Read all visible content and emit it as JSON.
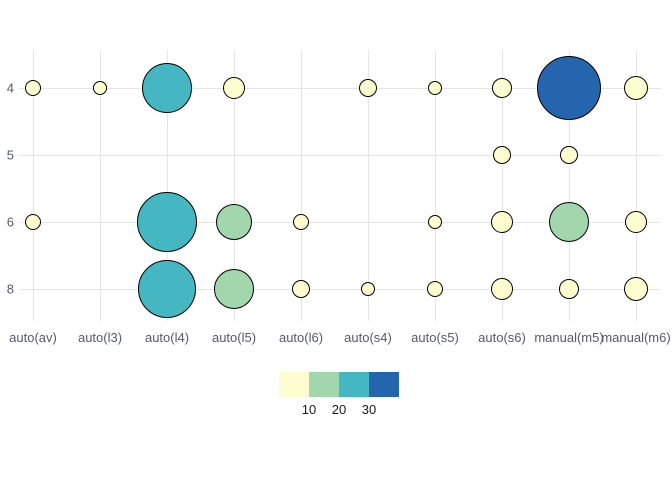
{
  "chart_data": {
    "type": "scatter",
    "subtype": "bubble-count",
    "title": "",
    "xlabel": "",
    "ylabel": "",
    "grid": true,
    "legend_position": "bottom",
    "x_categories": [
      "auto(av)",
      "auto(l3)",
      "auto(l4)",
      "auto(l5)",
      "auto(l6)",
      "auto(s4)",
      "auto(s5)",
      "auto(s6)",
      "manual(m5)",
      "manual(m6)"
    ],
    "y_categories": [
      "4",
      "5",
      "6",
      "8"
    ],
    "legend": {
      "tick_labels": [
        "10",
        "20",
        "30"
      ],
      "bin_colors": [
        "#fdfdcf",
        "#a2d7ad",
        "#44b7c3",
        "#2565ae"
      ],
      "bin_ranges": [
        "<=10",
        "11-20",
        "21-30",
        ">30"
      ]
    },
    "points": [
      {
        "x": "auto(av)",
        "y": "4",
        "count": 3,
        "r": 8,
        "color": "#fdfdcf"
      },
      {
        "x": "auto(l3)",
        "y": "4",
        "count": 2,
        "r": 7,
        "color": "#fdfdcf"
      },
      {
        "x": "auto(l4)",
        "y": "4",
        "count": 23,
        "r": 25,
        "color": "#44b7c3"
      },
      {
        "x": "auto(l5)",
        "y": "4",
        "count": 4,
        "r": 11,
        "color": "#fdfdcf"
      },
      {
        "x": "auto(s4)",
        "y": "4",
        "count": 2,
        "r": 9,
        "color": "#fdfdcf"
      },
      {
        "x": "auto(s5)",
        "y": "4",
        "count": 1,
        "r": 7,
        "color": "#fdfdcf"
      },
      {
        "x": "auto(s6)",
        "y": "4",
        "count": 3,
        "r": 10,
        "color": "#fdfdcf"
      },
      {
        "x": "manual(m5)",
        "y": "4",
        "count": 33,
        "r": 32,
        "color": "#2565ae"
      },
      {
        "x": "manual(m6)",
        "y": "4",
        "count": 5,
        "r": 12,
        "color": "#fdfdcf"
      },
      {
        "x": "auto(s6)",
        "y": "5",
        "count": 2,
        "r": 9,
        "color": "#fdfdcf"
      },
      {
        "x": "manual(m5)",
        "y": "5",
        "count": 2,
        "r": 9,
        "color": "#fdfdcf"
      },
      {
        "x": "auto(av)",
        "y": "6",
        "count": 2,
        "r": 8,
        "color": "#fdfdcf"
      },
      {
        "x": "auto(l4)",
        "y": "6",
        "count": 30,
        "r": 30,
        "color": "#44b7c3"
      },
      {
        "x": "auto(l5)",
        "y": "6",
        "count": 12,
        "r": 18,
        "color": "#a2d7ad"
      },
      {
        "x": "auto(l6)",
        "y": "6",
        "count": 2,
        "r": 8,
        "color": "#fdfdcf"
      },
      {
        "x": "auto(s5)",
        "y": "6",
        "count": 1,
        "r": 7,
        "color": "#fdfdcf"
      },
      {
        "x": "auto(s6)",
        "y": "6",
        "count": 4,
        "r": 11,
        "color": "#fdfdcf"
      },
      {
        "x": "manual(m5)",
        "y": "6",
        "count": 14,
        "r": 20,
        "color": "#a2d7ad"
      },
      {
        "x": "manual(m6)",
        "y": "6",
        "count": 4,
        "r": 11,
        "color": "#fdfdcf"
      },
      {
        "x": "auto(l4)",
        "y": "8",
        "count": 30,
        "r": 29,
        "color": "#44b7c3"
      },
      {
        "x": "auto(l5)",
        "y": "8",
        "count": 14,
        "r": 20,
        "color": "#a2d7ad"
      },
      {
        "x": "auto(l6)",
        "y": "8",
        "count": 3,
        "r": 9,
        "color": "#fdfdcf"
      },
      {
        "x": "auto(s4)",
        "y": "8",
        "count": 1,
        "r": 7,
        "color": "#fdfdcf"
      },
      {
        "x": "auto(s5)",
        "y": "8",
        "count": 1,
        "r": 8,
        "color": "#fdfdcf"
      },
      {
        "x": "auto(s6)",
        "y": "8",
        "count": 4,
        "r": 11,
        "color": "#fdfdcf"
      },
      {
        "x": "manual(m5)",
        "y": "8",
        "count": 3,
        "r": 10,
        "color": "#fdfdcf"
      },
      {
        "x": "manual(m6)",
        "y": "8",
        "count": 5,
        "r": 12,
        "color": "#fdfdcf"
      }
    ]
  },
  "colors": {
    "background": "#ffffff",
    "grid": "#e5e5e5",
    "axis_text": "#555b63",
    "bubble_stroke": "#000000",
    "legend_text": "#1a1a1a"
  }
}
